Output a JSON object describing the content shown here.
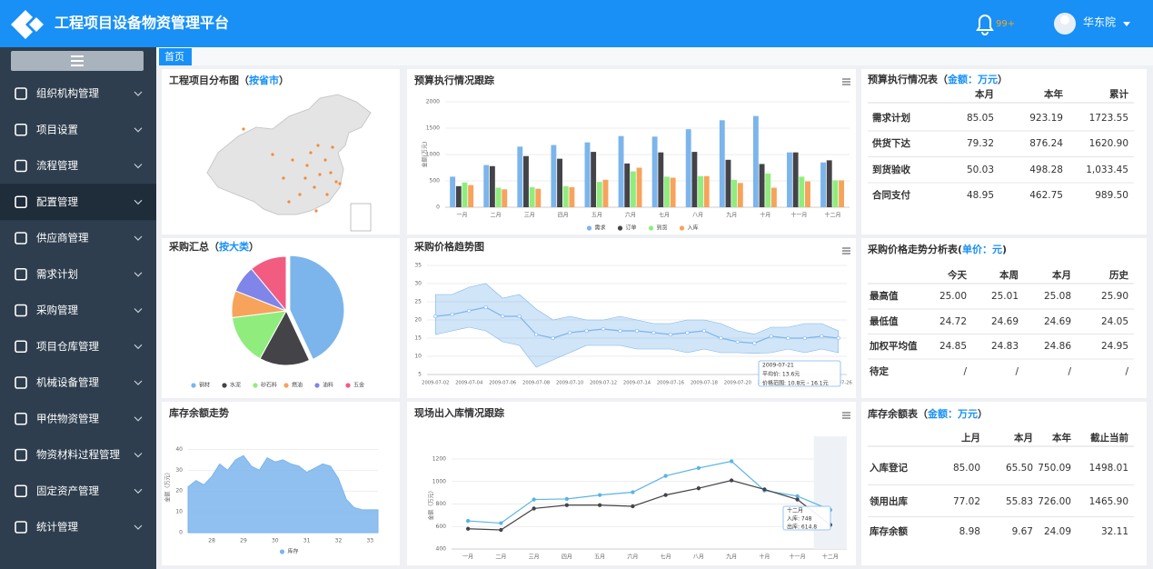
{
  "header": {
    "title": "工程项目设备物资管理平台",
    "badge": "99+",
    "user": "华东院"
  },
  "menu": [
    "组织机构管理",
    "项目设置",
    "流程管理",
    "配置管理",
    "供应商管理",
    "需求计划",
    "采购管理",
    "项目仓库管理",
    "机械设备管理",
    "甲供物资管理",
    "物资材料过程管理",
    "固定资产管理",
    "统计管理"
  ],
  "tab": "首页",
  "map": {
    "title": [
      "工程项目分布图（",
      "按省市",
      "）"
    ]
  },
  "chart_data": [
    {
      "type": "bar",
      "title": [
        "预算执行情况跟踪"
      ],
      "y_label": "金额(万元)",
      "categories": [
        "一月",
        "二月",
        "三月",
        "四月",
        "五月",
        "六月",
        "七月",
        "八月",
        "九月",
        "十月",
        "十一月",
        "十二月"
      ],
      "series": [
        {
          "name": "需求",
          "color": "#7cb5ec",
          "values": [
            580,
            800,
            1150,
            1180,
            1230,
            1350,
            1340,
            1480,
            1650,
            1730,
            1040,
            850
          ]
        },
        {
          "name": "订单",
          "color": "#434348",
          "values": [
            400,
            780,
            970,
            920,
            1050,
            830,
            1040,
            1050,
            900,
            820,
            1040,
            890
          ]
        },
        {
          "name": "到货",
          "color": "#90ed7d",
          "values": [
            470,
            370,
            380,
            400,
            480,
            680,
            580,
            590,
            520,
            640,
            580,
            510
          ]
        },
        {
          "name": "入库",
          "color": "#f7a35c",
          "values": [
            420,
            340,
            350,
            380,
            520,
            750,
            560,
            590,
            460,
            370,
            490,
            510
          ]
        }
      ],
      "ylim": [
        0,
        2000
      ],
      "yticks": [
        0,
        500,
        1000,
        1500,
        2000
      ],
      "grid": true
    },
    {
      "type": "pie",
      "title": [
        "采购汇总（",
        "按大类",
        "）"
      ],
      "categories": [
        "钢材",
        "水泥",
        "砂石料",
        "燃油",
        "油料",
        "五金"
      ],
      "values": [
        43,
        15,
        15,
        8,
        8,
        11
      ],
      "colors": [
        "#7cb5ec",
        "#434348",
        "#90ed7d",
        "#f7a35c",
        "#8085e9",
        "#f15c80"
      ]
    },
    {
      "type": "line",
      "title": [
        "采购价格趋势图"
      ],
      "categories": [
        "2009-07-02",
        null,
        "2009-07-04",
        null,
        "2009-07-06",
        null,
        "2009-07-08",
        null,
        "2009-07-10",
        null,
        "2009-07-12",
        null,
        "2009-07-14",
        null,
        "2009-07-16",
        null,
        "2009-07-18",
        null,
        "2009-07-20",
        null,
        "2009-07-22",
        null,
        "2009-07-24",
        null,
        "2009-07-26"
      ],
      "series": [
        {
          "color": "#7cb5ec",
          "values": [
            21,
            21.5,
            22.5,
            23.5,
            21,
            21,
            16,
            15,
            16.5,
            17,
            17.5,
            17,
            17,
            16.5,
            16,
            16.5,
            17,
            15,
            14,
            13.6,
            15.5,
            15,
            15,
            15.5,
            15
          ]
        }
      ],
      "range": {
        "color": "#7cb5ec",
        "low": [
          16,
          17,
          18,
          17,
          14,
          13,
          7,
          9,
          11,
          13,
          13,
          13,
          12,
          12,
          12,
          11,
          12,
          11,
          11,
          10.8,
          11,
          12,
          11,
          12,
          11
        ],
        "high": [
          27,
          27,
          29,
          30,
          26,
          27,
          23,
          20,
          21,
          20,
          20,
          21,
          20,
          19,
          19,
          20,
          20,
          19,
          17,
          16.1,
          18,
          18,
          19,
          19,
          17
        ]
      },
      "annotations": [
        "2009-07-21",
        "平均价: 13.6元",
        "价格范围: 10.8元 - 16.1元"
      ],
      "ylim": [
        5,
        35
      ],
      "yticks": [
        5,
        10,
        15,
        20,
        25,
        30,
        35
      ],
      "grid": true
    },
    {
      "type": "area",
      "title": [
        "库存余额走势"
      ],
      "y_label": "金额（万元）",
      "categories": [
        null,
        null,
        null,
        "28",
        null,
        null,
        null,
        "29",
        null,
        null,
        null,
        "30",
        null,
        null,
        null,
        "31",
        null,
        null,
        null,
        "32",
        null,
        null,
        null,
        "33",
        null
      ],
      "series": [
        {
          "name": "库存",
          "color": "#7cb5ec",
          "values": [
            22,
            25,
            23,
            27,
            33,
            30,
            35,
            37,
            32,
            30,
            36,
            34,
            35,
            33,
            32,
            29,
            31,
            33,
            32,
            26,
            16,
            12,
            11,
            11,
            11
          ]
        }
      ],
      "ylim": [
        0,
        45
      ],
      "yticks": [
        0,
        10,
        20,
        30,
        40
      ],
      "grid": true
    },
    {
      "type": "line",
      "title": [
        "现场出入库情况跟踪"
      ],
      "y_label": "金额（万元）",
      "categories": [
        "一月",
        "二月",
        "三月",
        "四月",
        "五月",
        "六月",
        "七月",
        "八月",
        "九月",
        "十月",
        "十一月",
        "十二月"
      ],
      "series": [
        {
          "color": "#5ab4e5",
          "values": [
            650,
            630,
            840,
            845,
            880,
            905,
            1050,
            1120,
            1180,
            920,
            870,
            748
          ]
        },
        {
          "color": "#434348",
          "values": [
            580,
            570,
            760,
            790,
            790,
            780,
            880,
            940,
            1010,
            930,
            840,
            614.8
          ]
        }
      ],
      "annotations": [
        "十二月",
        "入库: 748",
        "出库: 614.8"
      ],
      "ylim": [
        400,
        1200
      ],
      "yticks": [
        400,
        600,
        800,
        1000,
        1200
      ],
      "grid": true
    }
  ],
  "tables": [
    {
      "title": [
        "预算执行情况表（",
        "金额：万元",
        "）"
      ],
      "columns": [
        "本月",
        "本年",
        "累计"
      ],
      "rows": [
        [
          "需求计划",
          "85.05",
          "923.19",
          "1723.55"
        ],
        [
          "供货下达",
          "79.32",
          "876.24",
          "1620.90"
        ],
        [
          "到货验收",
          "50.03",
          "498.28",
          "1,033.45"
        ],
        [
          "合同支付",
          "48.95",
          "462.75",
          "989.50"
        ]
      ]
    },
    {
      "title": [
        "采购价格走势分析表(",
        "单价：元",
        ")"
      ],
      "columns": [
        "今天",
        "本周",
        "本月",
        "历史"
      ],
      "rows": [
        [
          "最高值",
          "25.00",
          "25.01",
          "25.08",
          "25.90"
        ],
        [
          "最低值",
          "24.72",
          "24.69",
          "24.69",
          "24.05"
        ],
        [
          "加权平均值",
          "24.85",
          "24.83",
          "24.86",
          "24.95"
        ],
        [
          "待定",
          "/",
          "/",
          "/",
          "/"
        ]
      ]
    },
    {
      "title": [
        "库存余额表（",
        "金额：万元",
        "）"
      ],
      "columns": [
        "上月",
        "本月",
        "本年",
        "截止当前"
      ],
      "rows": [
        [
          "入库登记",
          "85.00",
          "65.50",
          "750.09",
          "1498.01"
        ],
        [
          "领用出库",
          "77.02",
          "55.83",
          "726.00",
          "1465.90"
        ],
        [
          "库存余额",
          "8.98",
          "9.67",
          "24.09",
          "32.11"
        ]
      ]
    }
  ]
}
